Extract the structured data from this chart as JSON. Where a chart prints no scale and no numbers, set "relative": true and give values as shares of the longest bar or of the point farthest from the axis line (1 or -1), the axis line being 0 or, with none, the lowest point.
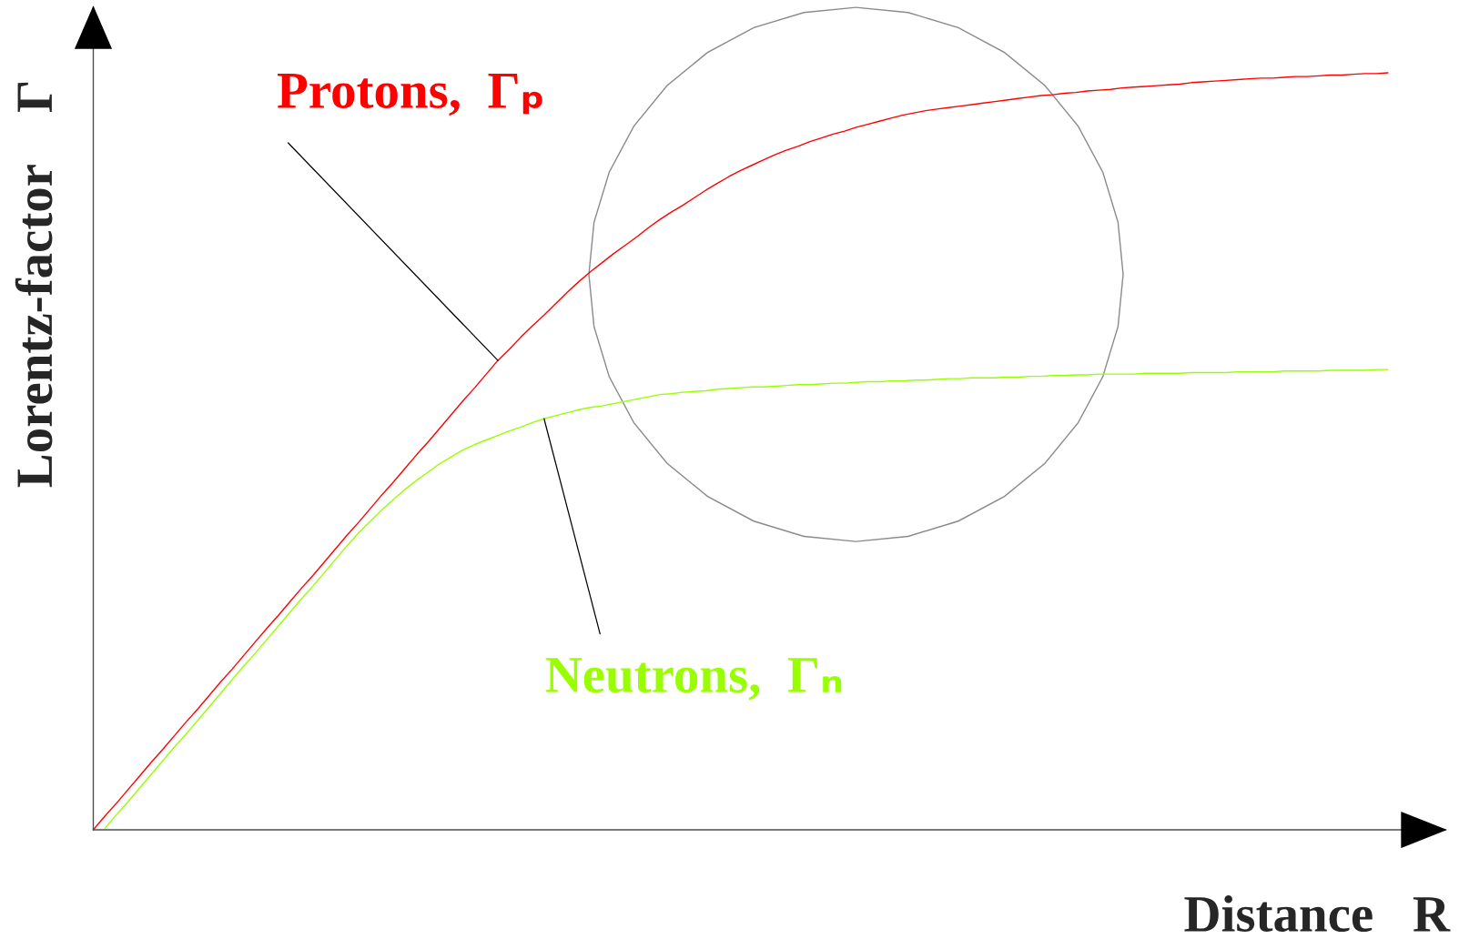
{
  "chart_data": {
    "type": "line",
    "relative": true,
    "tick_labels": false,
    "legend": false,
    "xlabel": "Distance   R",
    "ylabel": "Lorentz-factor    Γ",
    "categories": [
      null,
      null,
      null,
      null,
      null,
      null,
      null,
      null,
      null,
      null,
      null,
      null,
      null,
      null,
      null,
      null,
      null,
      null,
      null,
      null,
      null,
      null,
      null,
      null,
      null,
      null,
      null,
      null,
      null,
      null,
      null,
      null,
      null,
      null,
      null,
      null,
      null,
      null,
      null,
      null,
      null,
      null,
      null,
      null,
      null,
      null,
      null,
      null,
      null,
      null,
      null,
      null,
      null,
      null,
      null,
      null,
      null,
      null,
      null,
      null,
      null,
      null,
      null,
      null,
      null,
      null,
      null,
      null,
      null,
      null,
      null,
      null,
      null,
      null,
      null,
      null,
      null,
      null,
      null,
      null,
      null,
      null,
      null,
      null,
      null,
      null,
      null,
      null,
      null,
      null,
      null,
      null,
      null,
      null,
      null,
      null,
      null,
      null,
      null,
      null,
      null,
      null,
      null,
      null,
      null,
      null,
      null,
      null,
      null,
      null,
      null,
      null,
      null
    ],
    "series": [
      {
        "name": "Protons,  Γₚ",
        "color": "#ff0000",
        "values": [
          0,
          0.018,
          0.035,
          0.053,
          0.071,
          0.089,
          0.106,
          0.124,
          0.142,
          0.159,
          0.177,
          0.195,
          0.212,
          0.23,
          0.248,
          0.266,
          0.283,
          0.301,
          0.319,
          0.336,
          0.354,
          0.372,
          0.39,
          0.407,
          0.425,
          0.443,
          0.46,
          0.478,
          0.496,
          0.513,
          0.531,
          0.549,
          0.567,
          0.584,
          0.602,
          0.62,
          0.635,
          0.651,
          0.666,
          0.68,
          0.695,
          0.71,
          0.724,
          0.737,
          0.749,
          0.761,
          0.772,
          0.783,
          0.795,
          0.806,
          0.816,
          0.825,
          0.835,
          0.845,
          0.854,
          0.863,
          0.871,
          0.878,
          0.885,
          0.892,
          0.898,
          0.903,
          0.909,
          0.914,
          0.919,
          0.923,
          0.928,
          0.932,
          0.936,
          0.94,
          0.944,
          0.947,
          0.95,
          0.952,
          0.954,
          0.956,
          0.958,
          0.96,
          0.962,
          0.964,
          0.966,
          0.968,
          0.97,
          0.971,
          0.973,
          0.974,
          0.976,
          0.977,
          0.978,
          0.98,
          0.981,
          0.982,
          0.983,
          0.984,
          0.985,
          0.987,
          0.988,
          0.989,
          0.99,
          0.991,
          0.992,
          0.993,
          0.993,
          0.994,
          0.995,
          0.995,
          0.996,
          0.997,
          0.997,
          0.998,
          0.999,
          0.999,
          1
        ]
      },
      {
        "name": "Neutrons,  Γₙ",
        "color": "#99ff00",
        "values": [
          null,
          0.002,
          0.02,
          0.037,
          0.055,
          0.073,
          0.091,
          0.109,
          0.126,
          0.144,
          0.162,
          0.18,
          0.198,
          0.216,
          0.233,
          0.251,
          0.269,
          0.287,
          0.305,
          0.322,
          0.34,
          0.358,
          0.376,
          0.393,
          0.408,
          0.423,
          0.437,
          0.45,
          0.462,
          0.473,
          0.484,
          0.493,
          0.502,
          0.509,
          0.515,
          0.521,
          0.527,
          0.532,
          0.538,
          0.543,
          0.547,
          0.551,
          0.555,
          0.558,
          0.56,
          0.563,
          0.566,
          0.569,
          0.572,
          0.575,
          0.576,
          0.578,
          0.579,
          0.58,
          0.582,
          0.583,
          0.584,
          0.585,
          0.585,
          0.586,
          0.587,
          0.588,
          0.588,
          0.589,
          0.59,
          0.59,
          0.591,
          0.592,
          0.592,
          0.593,
          0.593,
          0.594,
          0.594,
          0.595,
          0.596,
          0.596,
          0.597,
          0.597,
          0.597,
          0.598,
          0.598,
          0.599,
          0.599,
          0.6,
          0.6,
          0.601,
          0.601,
          0.602,
          0.602,
          0.602,
          0.602,
          0.603,
          0.603,
          0.603,
          0.603,
          0.604,
          0.604,
          0.604,
          0.604,
          0.605,
          0.605,
          0.605,
          0.605,
          0.606,
          0.606,
          0.606,
          0.606,
          0.607,
          0.607,
          0.607,
          0.607,
          0.608,
          0.608
        ]
      }
    ]
  }
}
